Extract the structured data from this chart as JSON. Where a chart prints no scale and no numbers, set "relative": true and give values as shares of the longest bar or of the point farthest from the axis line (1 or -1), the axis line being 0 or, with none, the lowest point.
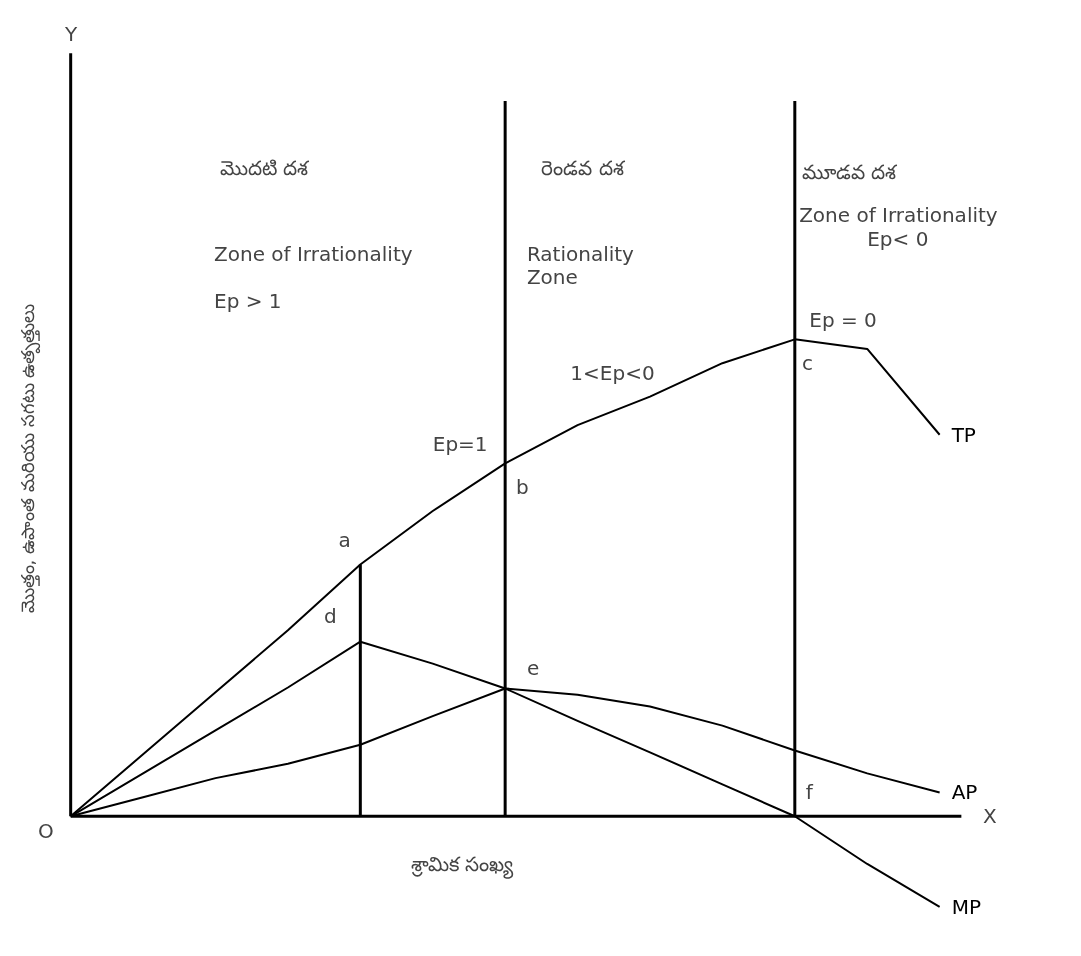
{
  "chart_data": {
    "type": "line",
    "relative": true,
    "xlabel": "శ్రామిక సంఖ్య",
    "ylabel": "మొత్తం, ఉపాంత మరియు సగటు ఉత్పత్తులు",
    "legend": "right",
    "grid": false,
    "marker": "none",
    "line_style": "solid",
    "categories": [
      null,
      null,
      null,
      null,
      null,
      null,
      null,
      null,
      null,
      null,
      null,
      null,
      null
    ],
    "series": [
      {
        "name": "TP",
        "color": "#000000",
        "values": [
          0,
          0.13,
          0.26,
          0.39,
          0.528,
          0.64,
          0.74,
          0.82,
          0.88,
          0.95,
          1.0,
          0.98,
          0.8
        ]
      },
      {
        "name": "AP",
        "color": "#000000",
        "values": [
          0,
          0.04,
          0.08,
          0.11,
          0.15,
          0.21,
          0.268,
          0.255,
          0.23,
          0.19,
          0.138,
          0.09,
          0.05
        ]
      },
      {
        "name": "MP",
        "color": "#000000",
        "values": [
          0,
          0.09,
          0.18,
          0.27,
          0.366,
          0.32,
          0.268,
          0.2,
          0.134,
          0.067,
          0,
          -0.1,
          -0.19
        ]
      }
    ],
    "annotations": [
      "మొదటి దశ",
      "రెండవ దశ",
      "మూడవ దశ",
      "Zone of Irrationality",
      "Ep > 1",
      "Rationality",
      "Zone",
      "Zone of Irrationality",
      "Ep< 0",
      "Ep = 0",
      "1<Ep<0",
      "Ep=1",
      "a",
      "b",
      "c",
      "d",
      "e",
      "f",
      "O",
      "X",
      "Y"
    ]
  }
}
